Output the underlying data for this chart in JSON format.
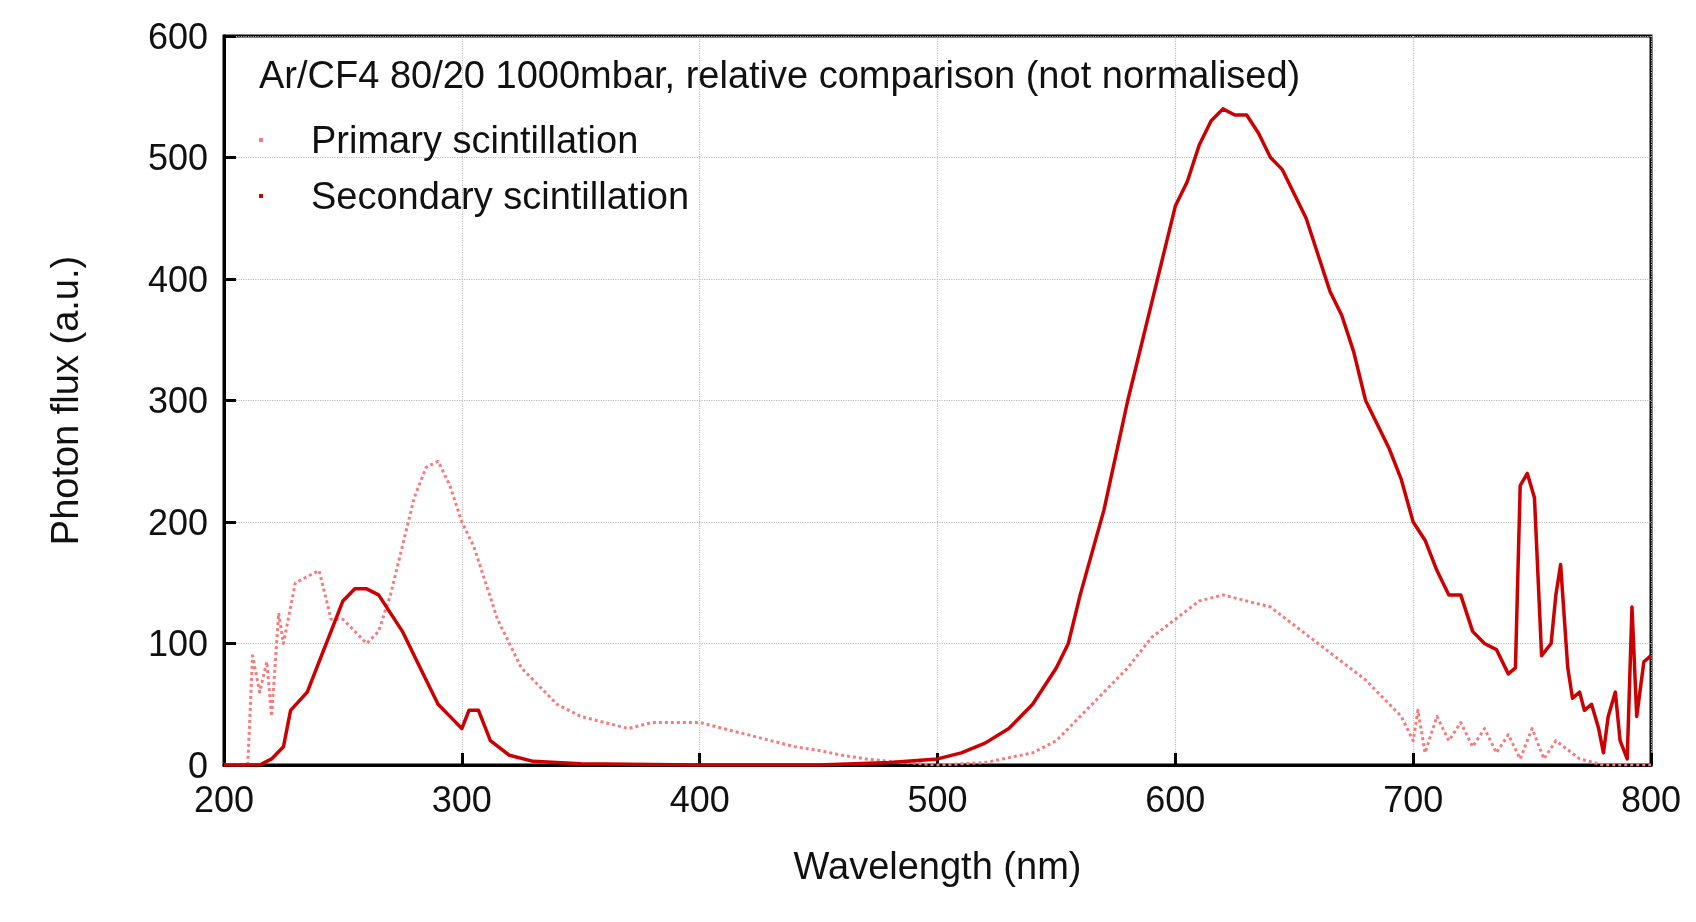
{
  "chart_data": {
    "type": "line",
    "legend_title": "Ar/CF4 80/20 1000mbar, relative comparison (not normalised)",
    "xlabel": "Wavelength (nm)",
    "ylabel": "Photon flux (a.u.)",
    "xlim": [
      200,
      800
    ],
    "xticks": [
      200,
      300,
      400,
      500,
      600,
      700,
      800
    ],
    "ylim": [
      0,
      600
    ],
    "yticks": [
      0,
      100,
      200,
      300,
      400,
      500,
      600
    ],
    "grid": true,
    "legend": "top left",
    "marker": "none",
    "series": [
      {
        "name": "Primary scintillation",
        "color": "#f47c7c",
        "line_style": "dotted",
        "x": [
          200,
          210,
          212,
          215,
          218,
          220,
          223,
          225,
          230,
          235,
          240,
          245,
          250,
          255,
          260,
          265,
          270,
          275,
          280,
          285,
          290,
          295,
          300,
          305,
          310,
          315,
          320,
          325,
          330,
          340,
          350,
          360,
          370,
          380,
          390,
          400,
          410,
          420,
          430,
          440,
          450,
          460,
          470,
          480,
          500,
          520,
          540,
          550,
          560,
          570,
          580,
          590,
          600,
          610,
          620,
          630,
          640,
          650,
          660,
          670,
          680,
          690,
          695,
          700,
          702,
          705,
          710,
          715,
          720,
          725,
          730,
          735,
          740,
          745,
          750,
          755,
          760,
          770,
          780,
          800
        ],
        "values": [
          0,
          0,
          90,
          60,
          85,
          40,
          125,
          100,
          150,
          155,
          160,
          120,
          120,
          110,
          100,
          110,
          140,
          180,
          220,
          245,
          250,
          230,
          200,
          180,
          150,
          120,
          100,
          80,
          70,
          50,
          40,
          35,
          30,
          35,
          35,
          35,
          30,
          25,
          20,
          15,
          12,
          8,
          5,
          3,
          0,
          2,
          10,
          20,
          40,
          60,
          80,
          105,
          120,
          135,
          140,
          135,
          130,
          115,
          100,
          85,
          70,
          50,
          40,
          20,
          45,
          10,
          40,
          20,
          35,
          15,
          30,
          10,
          25,
          5,
          30,
          5,
          20,
          5,
          0,
          0
        ]
      },
      {
        "name": "Secondary scintillation",
        "color": "#cc0000",
        "line_style": "solid",
        "x": [
          200,
          215,
          220,
          225,
          228,
          235,
          240,
          245,
          250,
          255,
          260,
          265,
          270,
          275,
          280,
          285,
          290,
          295,
          300,
          303,
          307,
          312,
          320,
          330,
          350,
          400,
          450,
          480,
          500,
          510,
          520,
          530,
          540,
          550,
          555,
          560,
          570,
          580,
          590,
          600,
          605,
          610,
          615,
          620,
          625,
          630,
          635,
          640,
          645,
          650,
          655,
          660,
          665,
          670,
          675,
          680,
          685,
          690,
          695,
          700,
          705,
          710,
          715,
          720,
          725,
          730,
          735,
          740,
          743,
          745,
          748,
          751,
          754,
          758,
          760,
          762,
          765,
          767,
          770,
          772,
          775,
          778,
          780,
          782,
          785,
          787,
          790,
          792,
          794,
          797,
          800
        ],
        "values": [
          0,
          0,
          5,
          15,
          45,
          60,
          85,
          110,
          135,
          145,
          145,
          140,
          125,
          110,
          90,
          70,
          50,
          40,
          30,
          45,
          45,
          20,
          8,
          3,
          1,
          0,
          0,
          2,
          5,
          10,
          18,
          30,
          50,
          80,
          100,
          140,
          210,
          300,
          380,
          460,
          480,
          510,
          530,
          540,
          535,
          535,
          520,
          500,
          490,
          470,
          450,
          420,
          390,
          370,
          340,
          300,
          280,
          260,
          235,
          200,
          185,
          160,
          140,
          140,
          110,
          100,
          95,
          75,
          80,
          230,
          240,
          220,
          90,
          100,
          140,
          165,
          80,
          55,
          60,
          45,
          50,
          30,
          10,
          40,
          60,
          20,
          5,
          130,
          40,
          85,
          90
        ]
      }
    ]
  }
}
